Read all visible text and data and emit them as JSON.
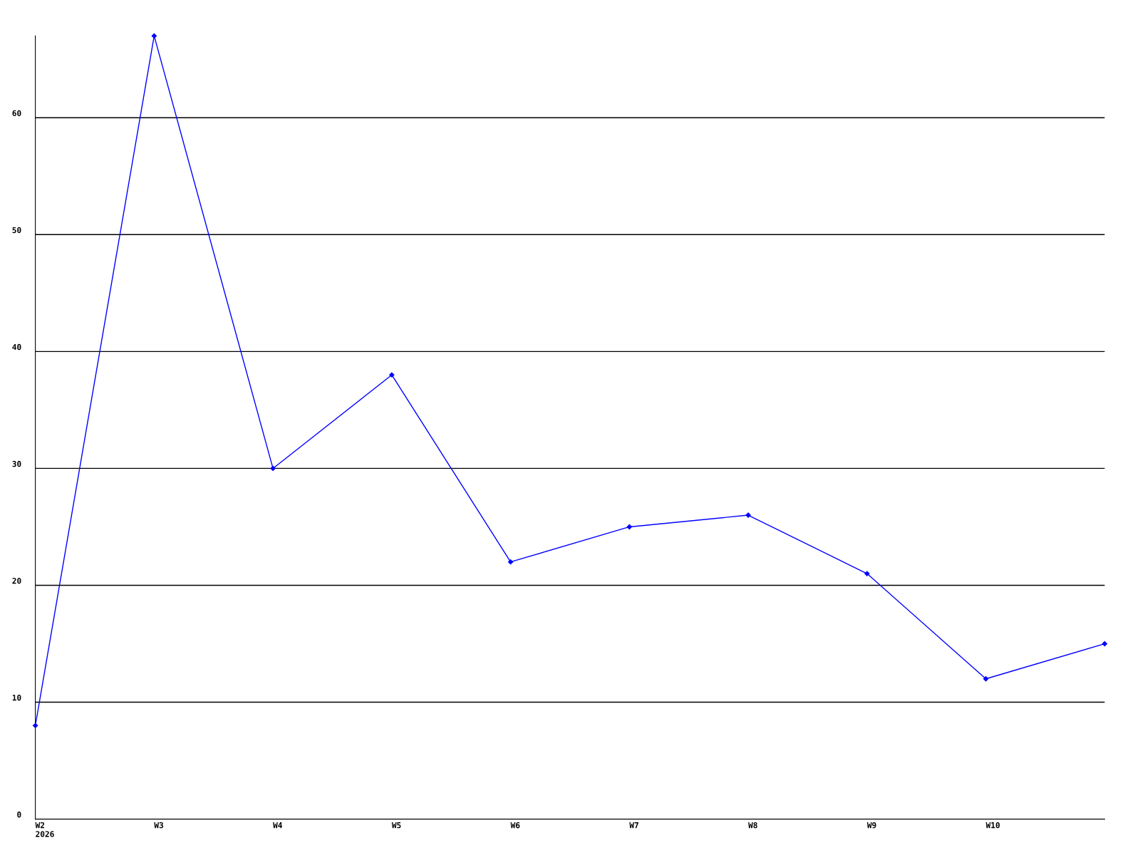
{
  "chart_data": {
    "type": "line",
    "categories": [
      "W2\n2026",
      "W3",
      "W4",
      "W5",
      "W6",
      "W7",
      "W8",
      "W9",
      "W10",
      null
    ],
    "series": [
      {
        "color": "#0000ff",
        "values": [
          8,
          67,
          30,
          38,
          22,
          25,
          26,
          21,
          12,
          15
        ]
      }
    ],
    "ylim": [
      0,
      67
    ],
    "yticks": [
      0,
      10,
      20,
      30,
      40,
      50,
      60
    ],
    "grid": "y",
    "marker": "diamond",
    "line_style": "solid"
  }
}
